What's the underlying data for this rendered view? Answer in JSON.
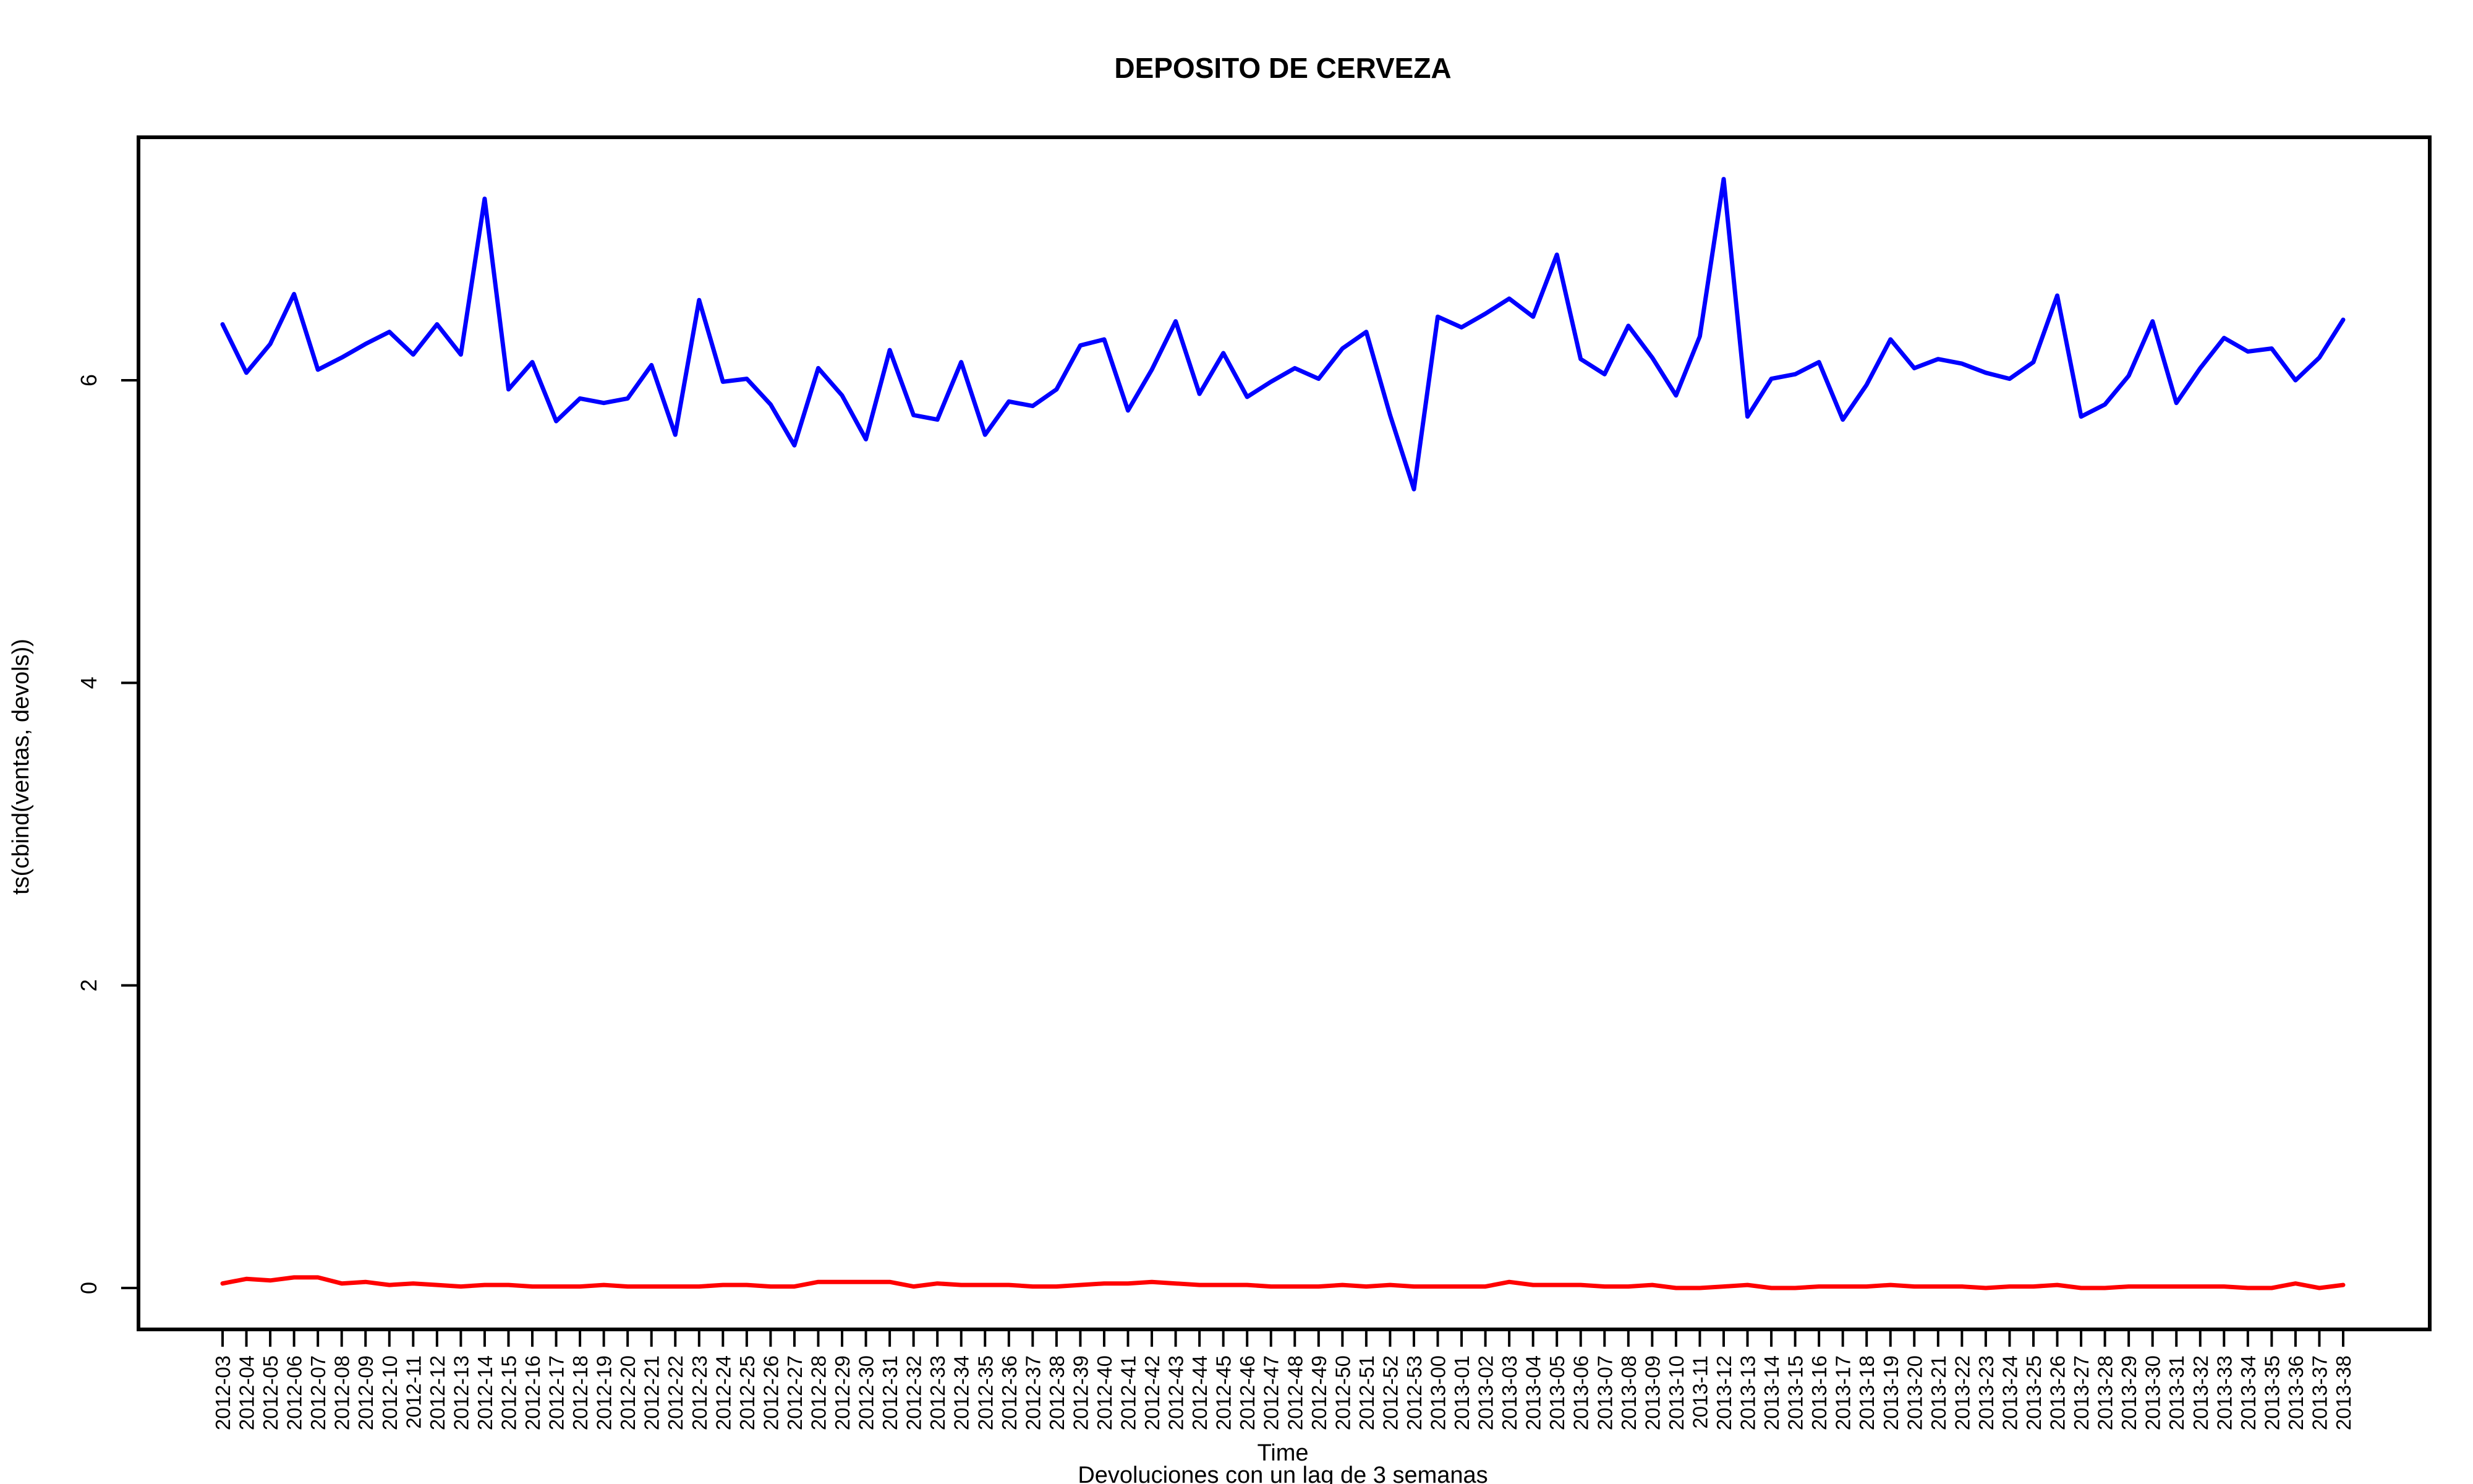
{
  "chart_data": {
    "type": "line",
    "title": "DEPOSITO DE CERVEZA",
    "xlabel": "Time",
    "subtitle": "Devoluciones con un lag de 3 semanas",
    "ylabel": "ts(cbind(ventas, devols))",
    "ylim": [
      0,
      7.4
    ],
    "yticks": [
      0,
      2,
      4,
      6
    ],
    "legend": "none",
    "grid": false,
    "categories": [
      "2012-03",
      "2012-04",
      "2012-05",
      "2012-06",
      "2012-07",
      "2012-08",
      "2012-09",
      "2012-10",
      "2012-11",
      "2012-12",
      "2012-13",
      "2012-14",
      "2012-15",
      "2012-16",
      "2012-17",
      "2012-18",
      "2012-19",
      "2012-20",
      "2012-21",
      "2012-22",
      "2012-23",
      "2012-24",
      "2012-25",
      "2012-26",
      "2012-27",
      "2012-28",
      "2012-29",
      "2012-30",
      "2012-31",
      "2012-32",
      "2012-33",
      "2012-34",
      "2012-35",
      "2012-36",
      "2012-37",
      "2012-38",
      "2012-39",
      "2012-40",
      "2012-41",
      "2012-42",
      "2012-43",
      "2012-44",
      "2012-45",
      "2012-46",
      "2012-47",
      "2012-48",
      "2012-49",
      "2012-50",
      "2012-51",
      "2012-52",
      "2012-53",
      "2013-00",
      "2013-01",
      "2013-02",
      "2013-03",
      "2013-04",
      "2013-05",
      "2013-06",
      "2013-07",
      "2013-08",
      "2013-09",
      "2013-10",
      "2013-11",
      "2013-12",
      "2013-13",
      "2013-14",
      "2013-15",
      "2013-16",
      "2013-17",
      "2013-18",
      "2013-19",
      "2013-20",
      "2013-21",
      "2013-22",
      "2013-23",
      "2013-24",
      "2013-25",
      "2013-26",
      "2013-27",
      "2013-28",
      "2013-29",
      "2013-30",
      "2013-31",
      "2013-32",
      "2013-33",
      "2013-34",
      "2013-35",
      "2013-36",
      "2013-37",
      "2013-38"
    ],
    "series": [
      {
        "color": "#0000ff",
        "values": [
          6.37,
          6.05,
          6.24,
          6.57,
          6.07,
          6.15,
          6.24,
          6.32,
          6.17,
          6.37,
          6.17,
          7.2,
          5.94,
          6.12,
          5.73,
          5.88,
          5.85,
          5.88,
          6.1,
          5.64,
          6.53,
          5.99,
          6.01,
          5.84,
          5.57,
          6.08,
          5.9,
          5.61,
          6.2,
          5.77,
          5.74,
          6.12,
          5.64,
          5.86,
          5.83,
          5.94,
          6.23,
          6.27,
          5.8,
          6.07,
          6.39,
          5.91,
          6.18,
          5.89,
          5.99,
          6.08,
          6.01,
          6.21,
          6.32,
          5.77,
          5.28,
          6.42,
          6.35,
          6.44,
          6.54,
          6.42,
          6.83,
          6.14,
          6.04,
          6.36,
          6.15,
          5.9,
          6.29,
          7.33,
          5.76,
          6.01,
          6.04,
          6.12,
          5.74,
          5.97,
          6.27,
          6.08,
          6.14,
          6.11,
          6.05,
          6.01,
          6.12,
          6.56,
          5.76,
          5.84,
          6.03,
          6.39,
          5.85,
          6.08,
          6.28,
          6.19,
          6.21,
          6.0,
          6.15,
          6.4
        ]
      },
      {
        "color": "#ff0000",
        "values": [
          0.03,
          0.06,
          0.05,
          0.07,
          0.07,
          0.03,
          0.04,
          0.02,
          0.03,
          0.02,
          0.01,
          0.02,
          0.02,
          0.01,
          0.01,
          0.01,
          0.02,
          0.01,
          0.01,
          0.01,
          0.01,
          0.02,
          0.02,
          0.01,
          0.01,
          0.04,
          0.04,
          0.04,
          0.04,
          0.01,
          0.03,
          0.02,
          0.02,
          0.02,
          0.01,
          0.01,
          0.02,
          0.03,
          0.03,
          0.04,
          0.03,
          0.02,
          0.02,
          0.02,
          0.01,
          0.01,
          0.01,
          0.02,
          0.01,
          0.02,
          0.01,
          0.01,
          0.01,
          0.01,
          0.04,
          0.02,
          0.02,
          0.02,
          0.01,
          0.01,
          0.02,
          0.0,
          0.0,
          0.01,
          0.02,
          0.0,
          0.0,
          0.01,
          0.01,
          0.01,
          0.02,
          0.01,
          0.01,
          0.01,
          0.0,
          0.01,
          0.01,
          0.02,
          0.0,
          0.0,
          0.01,
          0.01,
          0.01,
          0.01,
          0.01,
          0.0,
          0.0,
          0.03,
          0.0,
          0.02
        ]
      }
    ]
  }
}
